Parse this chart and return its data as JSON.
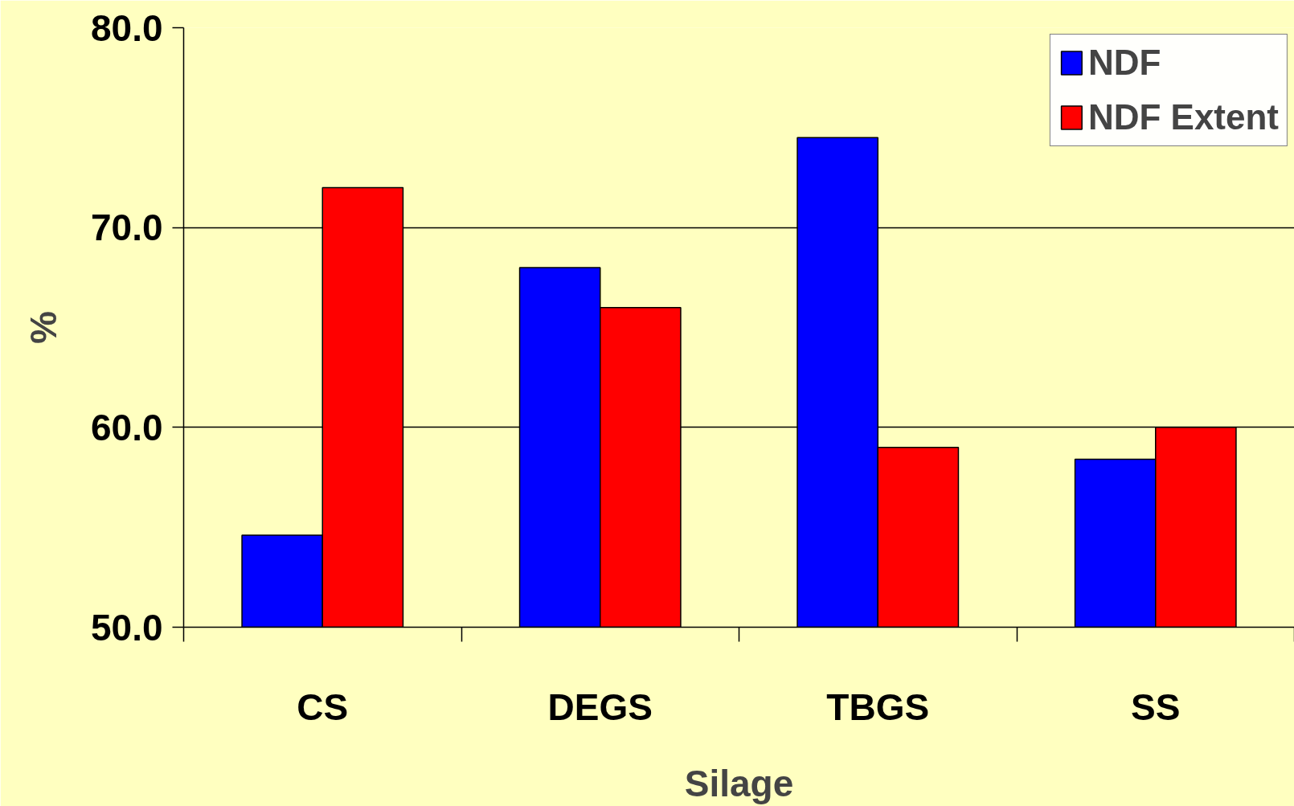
{
  "chart_data": {
    "type": "bar",
    "xlabel": "Silage",
    "ylabel": "%",
    "categories": [
      "CS",
      "DEGS",
      "TBGS",
      "SS"
    ],
    "series": [
      {
        "name": "NDF",
        "color": "#0000ff",
        "values": [
          54.6,
          68.0,
          74.5,
          58.4
        ]
      },
      {
        "name": "NDF Extent",
        "color": "#ff0000",
        "values": [
          72.0,
          66.0,
          59.0,
          60.0
        ]
      }
    ],
    "ylim": [
      50,
      80
    ],
    "yticks": [
      {
        "value": 50,
        "label": "50.0"
      },
      {
        "value": 60,
        "label": "60.0"
      },
      {
        "value": 70,
        "label": "70.0"
      },
      {
        "value": 80,
        "label": "80.0"
      }
    ],
    "grid": "y",
    "legend": "top right"
  }
}
